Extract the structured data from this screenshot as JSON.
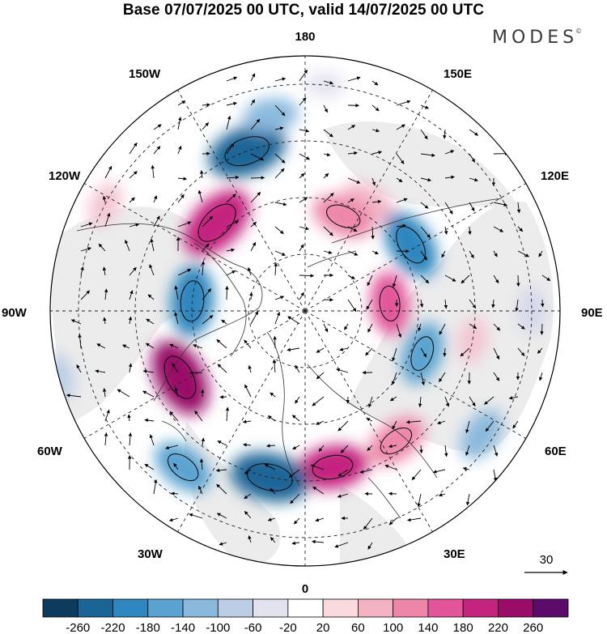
{
  "title": "Base 07/07/2025 00 UTC, valid 14/07/2025 00 UTC",
  "brand": "MODES",
  "brand_mark": "©",
  "lon_labels": {
    "top": "180",
    "bottom": "0",
    "left": "90W",
    "right": "90E",
    "ul1": "150W",
    "ul2": "120W",
    "ur1": "150E",
    "ur2": "120E",
    "ll1": "60W",
    "ll2": "30W",
    "lr1": "60E",
    "lr2": "30E"
  },
  "vector_key": {
    "label": "30"
  },
  "colorbar": {
    "colors": [
      "#0d3b5e",
      "#1a6596",
      "#2e86be",
      "#5aa3d0",
      "#8ab9dd",
      "#bccde6",
      "#e3e3f0",
      "#ffffff",
      "#fadadd",
      "#f4b3c3",
      "#ee86aa",
      "#e2559a",
      "#c4237f",
      "#990c68",
      "#5c0b6b"
    ],
    "ticks": [
      "-260",
      "-220",
      "-180",
      "-140",
      "-100",
      "-60",
      "-20",
      "20",
      "60",
      "100",
      "140",
      "180",
      "220",
      "260"
    ]
  },
  "anomaly_blobs": [
    {
      "lon": 150,
      "lat": 68,
      "value": 100,
      "color": "#f3b6c6"
    },
    {
      "lon": 158,
      "lat": 72,
      "value": 140,
      "color": "#ee86aa"
    },
    {
      "lon": 122,
      "lat": 68,
      "value": -180,
      "color": "#2e86be"
    },
    {
      "lon": 95,
      "lat": 75,
      "value": 140,
      "color": "#e2559a"
    },
    {
      "lon": 80,
      "lat": 60,
      "value": 60,
      "color": "#f4c6d2"
    },
    {
      "lon": 70,
      "lat": 68,
      "value": -140,
      "color": "#5aa3d0"
    },
    {
      "lon": 55,
      "lat": 52,
      "value": -100,
      "color": "#8ab9dd"
    },
    {
      "lon": 35,
      "lat": 62,
      "value": 140,
      "color": "#ee86aa"
    },
    {
      "lon": 10,
      "lat": 62,
      "value": 180,
      "color": "#c4237f"
    },
    {
      "lon": -12,
      "lat": 60,
      "value": -220,
      "color": "#1a6596"
    },
    {
      "lon": -38,
      "lat": 55,
      "value": -140,
      "color": "#5aa3d0"
    },
    {
      "lon": -62,
      "lat": 65,
      "value": 220,
      "color": "#990c68"
    },
    {
      "lon": -95,
      "lat": 70,
      "value": -180,
      "color": "#2e86be"
    },
    {
      "lon": -135,
      "lat": 68,
      "value": 220,
      "color": "#c4237f"
    },
    {
      "lon": -160,
      "lat": 60,
      "value": -220,
      "color": "#1a6596"
    },
    {
      "lon": -170,
      "lat": 55,
      "value": -100,
      "color": "#8ab9dd"
    },
    {
      "lon": -118,
      "lat": 50,
      "value": 60,
      "color": "#f4c6d2"
    },
    {
      "lon": -75,
      "lat": 45,
      "value": -60,
      "color": "#bccde6"
    },
    {
      "lon": -50,
      "lat": 40,
      "value": 60,
      "color": "#fadadd"
    },
    {
      "lon": 30,
      "lat": 40,
      "value": -60,
      "color": "#bccde6"
    },
    {
      "lon": 90,
      "lat": 50,
      "value": -60,
      "color": "#d4d8ea"
    },
    {
      "lon": 175,
      "lat": 50,
      "value": -20,
      "color": "#e3e3f0"
    }
  ]
}
